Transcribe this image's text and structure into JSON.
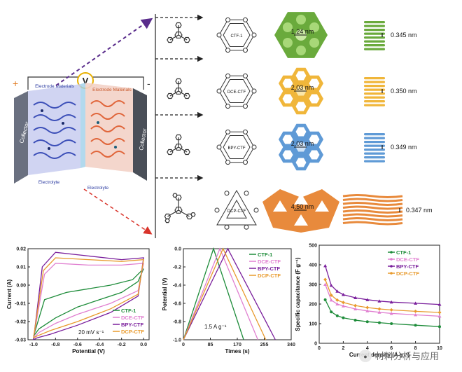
{
  "battery": {
    "labels": {
      "left_electrode": "Electrode Materials",
      "right_electrode": "Electrode Materials",
      "separator_symbol": "V",
      "left_collector": "Collector",
      "right_collector": "Collector",
      "left_electrolyte": "Electrolyte",
      "right_electrolyte": "Electrolyte",
      "plus": "+",
      "minus": "-"
    },
    "colors": {
      "left": "#4a5fc8",
      "right": "#e07a4f",
      "collector": "#555a63"
    }
  },
  "structures": [
    {
      "name": "CTF-1",
      "pore": "1.24 nm",
      "spacing": "0.345 nm",
      "color": "#6aaa3c"
    },
    {
      "name": "DCE-CTF",
      "pore": "2.03 nm",
      "spacing": "0.350 nm",
      "color": "#f0b63a"
    },
    {
      "name": "BPY-CTF",
      "pore": "2.03 nm",
      "spacing": "0.349 nm",
      "color": "#5f9ad6"
    },
    {
      "name": "DCP-CTF",
      "pore": "4.50 nm",
      "spacing": "0.347 nm",
      "color": "#e88a3c"
    }
  ],
  "chart_data": [
    {
      "type": "line",
      "id": "cv",
      "xlabel": "Potential (V)",
      "ylabel": "Current (A)",
      "xlim": [
        -1.05,
        0.05
      ],
      "ylim": [
        -0.03,
        0.02
      ],
      "xticks": [
        "-1.0",
        "-0.8",
        "-0.6",
        "-0.4",
        "-0.2",
        "0.0"
      ],
      "yticks": [
        "0.02",
        "0.01",
        "0.00",
        "-0.01",
        "-0.02",
        "-0.03"
      ],
      "annotation": "20 mV s⁻¹",
      "legend": "bottom-right",
      "series": [
        {
          "name": "CTF-1",
          "color": "#1e8c3a",
          "x": [
            -1.0,
            -0.9,
            -0.7,
            -0.5,
            -0.3,
            -0.1,
            0.0,
            -0.05,
            -0.2,
            -0.4,
            -0.6,
            -0.8,
            -0.95,
            -1.0
          ],
          "y": [
            -0.028,
            -0.008,
            -0.004,
            -0.002,
            0.0,
            0.003,
            0.009,
            0.002,
            -0.004,
            -0.008,
            -0.012,
            -0.018,
            -0.024,
            -0.028
          ]
        },
        {
          "name": "DCE-CTF",
          "color": "#e07fd0",
          "x": [
            -1.0,
            -0.9,
            -0.8,
            -0.5,
            -0.2,
            0.0,
            -0.05,
            -0.3,
            -0.6,
            -0.8,
            -0.95,
            -1.0
          ],
          "y": [
            -0.029,
            0.006,
            0.012,
            0.011,
            0.011,
            0.012,
            -0.003,
            -0.01,
            -0.016,
            -0.021,
            -0.026,
            -0.029
          ]
        },
        {
          "name": "BPY-CTF",
          "color": "#7a1f9c",
          "x": [
            -1.0,
            -0.92,
            -0.8,
            -0.5,
            -0.2,
            0.0,
            -0.05,
            -0.3,
            -0.6,
            -0.85,
            -0.97,
            -1.0
          ],
          "y": [
            -0.03,
            0.01,
            0.018,
            0.016,
            0.014,
            0.015,
            -0.006,
            -0.015,
            -0.022,
            -0.027,
            -0.029,
            -0.03
          ]
        },
        {
          "name": "DCP-CTF",
          "color": "#e89a2c",
          "x": [
            -1.0,
            -0.91,
            -0.8,
            -0.5,
            -0.2,
            0.0,
            -0.05,
            -0.3,
            -0.6,
            -0.85,
            -0.97,
            -1.0
          ],
          "y": [
            -0.029,
            0.008,
            0.015,
            0.014,
            0.013,
            0.014,
            -0.005,
            -0.013,
            -0.02,
            -0.025,
            -0.028,
            -0.029
          ]
        }
      ]
    },
    {
      "type": "line",
      "id": "gcd",
      "xlabel": "Times (s)",
      "ylabel": "Potential (V)",
      "xlim": [
        0,
        340
      ],
      "ylim": [
        -1.0,
        0.0
      ],
      "xticks": [
        "0",
        "85",
        "170",
        "255",
        "340"
      ],
      "yticks": [
        "0.0",
        "-0.2",
        "-0.4",
        "-0.6",
        "-0.8",
        "-1.0"
      ],
      "annotation": "1.5 A g⁻¹",
      "legend": "top-right",
      "series": [
        {
          "name": "CTF-1",
          "color": "#1e8c3a",
          "x": [
            0,
            95,
            190
          ],
          "y": [
            -1.0,
            0.0,
            -1.0
          ]
        },
        {
          "name": "DCE-CTF",
          "color": "#e07fd0",
          "x": [
            0,
            115,
            235
          ],
          "y": [
            -1.0,
            0.0,
            -1.0
          ]
        },
        {
          "name": "BPY-CTF",
          "color": "#7a1f9c",
          "x": [
            0,
            140,
            290
          ],
          "y": [
            -1.0,
            0.0,
            -1.0
          ]
        },
        {
          "name": "DCP-CTF",
          "color": "#e89a2c",
          "x": [
            0,
            125,
            260
          ],
          "y": [
            -1.0,
            0.0,
            -1.0
          ]
        }
      ]
    },
    {
      "type": "line",
      "id": "rate",
      "xlabel": "Current density (A g⁻¹)",
      "ylabel": "Specific capacitance (F g⁻¹)",
      "xlim": [
        0,
        10
      ],
      "ylim": [
        0,
        500
      ],
      "xticks": [
        "0",
        "2",
        "4",
        "6",
        "8",
        "10"
      ],
      "yticks": [
        "500",
        "400",
        "300",
        "200",
        "100",
        "0"
      ],
      "legend": "top-right",
      "series": [
        {
          "name": "CTF-1",
          "color": "#1e8c3a",
          "marker": "circle",
          "x": [
            0.5,
            1,
            1.5,
            2,
            3,
            4,
            5,
            6,
            8,
            10
          ],
          "y": [
            222,
            160,
            140,
            130,
            118,
            110,
            105,
            100,
            92,
            85
          ]
        },
        {
          "name": "DCE-CTF",
          "color": "#e07fd0",
          "marker": "triangle",
          "x": [
            0.5,
            1,
            1.5,
            2,
            3,
            4,
            5,
            6,
            8,
            10
          ],
          "y": [
            300,
            220,
            200,
            190,
            175,
            165,
            158,
            152,
            145,
            138
          ]
        },
        {
          "name": "BPY-CTF",
          "color": "#7a1f9c",
          "marker": "triangle",
          "x": [
            0.5,
            1,
            1.5,
            2,
            3,
            4,
            5,
            6,
            8,
            10
          ],
          "y": [
            395,
            295,
            265,
            248,
            232,
            222,
            215,
            210,
            204,
            198
          ]
        },
        {
          "name": "DCP-CTF",
          "color": "#e89a2c",
          "marker": "diamond",
          "x": [
            0.5,
            1,
            1.5,
            2,
            3,
            4,
            5,
            6,
            8,
            10
          ],
          "y": [
            325,
            245,
            220,
            208,
            192,
            182,
            175,
            170,
            163,
            157
          ]
        }
      ]
    }
  ],
  "watermark": "材料分析与应用"
}
